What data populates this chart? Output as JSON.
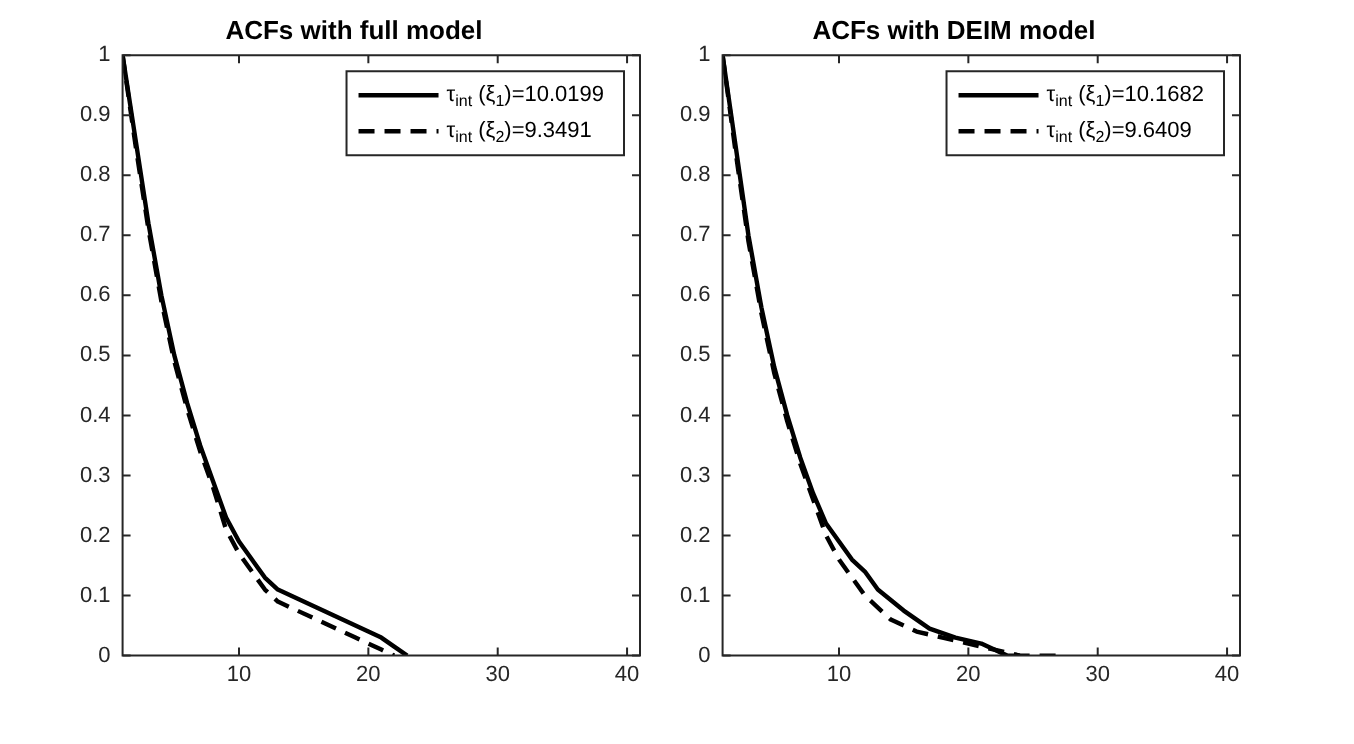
{
  "chart_data": [
    {
      "type": "line",
      "title": "ACFs with full model",
      "xlim": [
        1,
        41
      ],
      "xticks": [
        10,
        20,
        30,
        40
      ],
      "ylim": [
        0,
        1
      ],
      "yticks": [
        0,
        0.1,
        0.2,
        0.3,
        0.4,
        0.5,
        0.6,
        0.7,
        0.8,
        0.9,
        1
      ],
      "grid": false,
      "legend": "top right",
      "series": [
        {
          "name": "τ$_{int}$ (ξ$_{1}$)=10.0199",
          "color": "#000000",
          "line_style": "solid",
          "x": [
            1,
            2,
            3,
            4,
            5,
            6,
            7,
            8,
            9,
            10,
            11,
            12,
            13,
            14,
            16,
            18,
            20,
            21,
            22,
            23
          ],
          "values": [
            1,
            0.86,
            0.72,
            0.6,
            0.5,
            0.42,
            0.35,
            0.29,
            0.23,
            0.19,
            0.16,
            0.13,
            0.11,
            0.1,
            0.08,
            0.06,
            0.04,
            0.03,
            0.015,
            0
          ]
        },
        {
          "name": "τ$_{int}$ (ξ$_{2}$)=9.3491",
          "color": "#000000",
          "line_style": "dashed",
          "x": [
            1,
            2,
            3,
            4,
            5,
            6,
            7,
            8,
            9,
            10,
            11,
            12,
            13,
            14,
            16,
            18,
            19,
            20,
            21,
            22
          ],
          "values": [
            1,
            0.85,
            0.71,
            0.59,
            0.49,
            0.41,
            0.34,
            0.28,
            0.21,
            0.17,
            0.14,
            0.11,
            0.09,
            0.08,
            0.06,
            0.04,
            0.03,
            0.02,
            0.01,
            0
          ]
        }
      ]
    },
    {
      "type": "line",
      "title": "ACFs with DEIM model",
      "xlim": [
        1,
        41
      ],
      "xticks": [
        10,
        20,
        30,
        40
      ],
      "ylim": [
        0,
        1
      ],
      "yticks": [
        0,
        0.1,
        0.2,
        0.3,
        0.4,
        0.5,
        0.6,
        0.7,
        0.8,
        0.9,
        1
      ],
      "grid": false,
      "legend": "top right",
      "series": [
        {
          "name": "τ$_{int}$ (ξ$_{1}$)=10.1682",
          "color": "#000000",
          "line_style": "solid",
          "x": [
            1,
            2,
            3,
            4,
            5,
            6,
            7,
            8,
            9,
            10,
            11,
            12,
            13,
            15,
            17,
            19,
            21,
            22,
            23,
            24
          ],
          "values": [
            1,
            0.85,
            0.7,
            0.58,
            0.48,
            0.4,
            0.33,
            0.27,
            0.22,
            0.19,
            0.16,
            0.14,
            0.11,
            0.075,
            0.045,
            0.03,
            0.02,
            0.01,
            0,
            0
          ]
        },
        {
          "name": "τ$_{int}$ (ξ$_{2}$)=9.6409",
          "color": "#000000",
          "line_style": "dashed",
          "x": [
            1,
            2,
            3,
            4,
            5,
            6,
            7,
            8,
            9,
            10,
            11,
            12,
            14,
            16,
            18,
            20,
            22,
            24,
            25,
            27
          ],
          "values": [
            1,
            0.84,
            0.69,
            0.57,
            0.47,
            0.39,
            0.32,
            0.26,
            0.2,
            0.16,
            0.13,
            0.1,
            0.06,
            0.04,
            0.03,
            0.02,
            0.01,
            0,
            0,
            0
          ]
        }
      ]
    }
  ]
}
